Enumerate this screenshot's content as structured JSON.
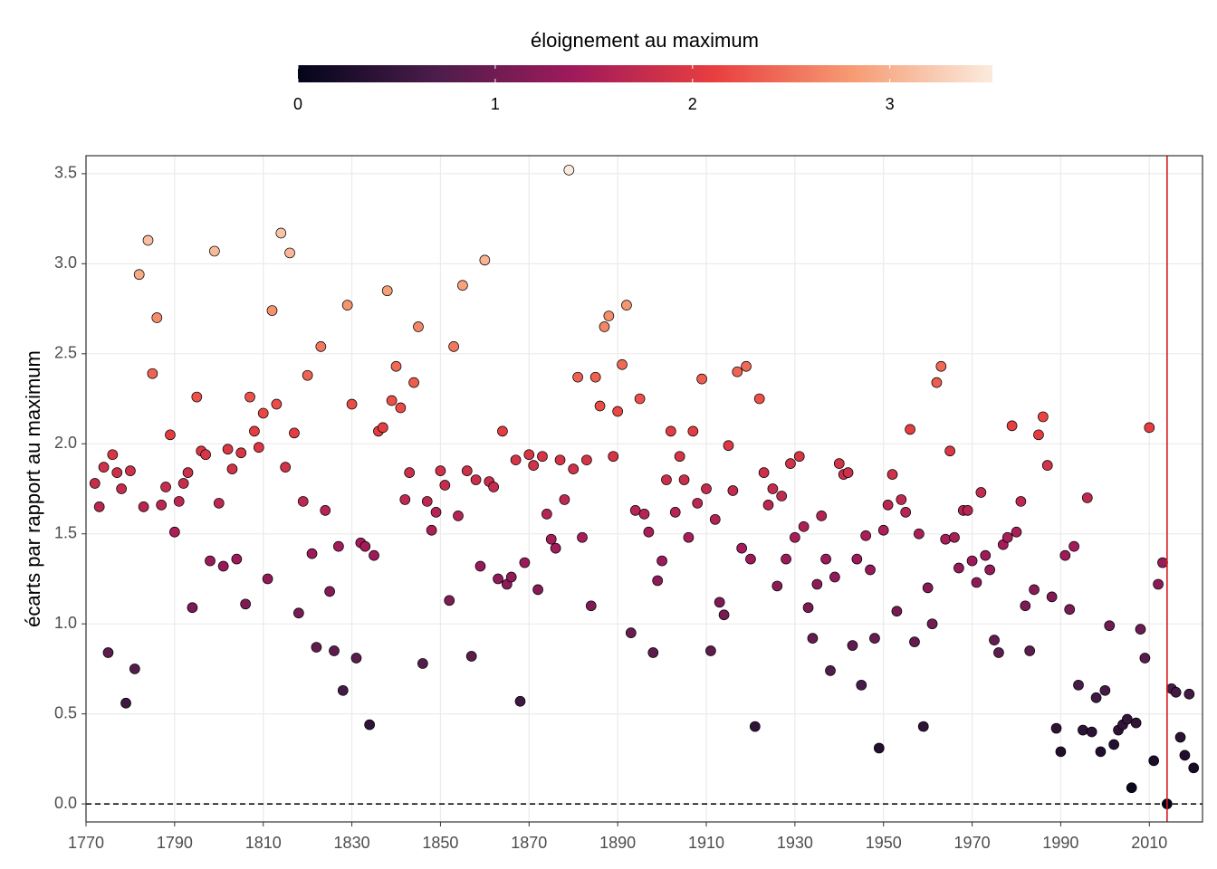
{
  "chart_data": {
    "type": "scatter",
    "ylabel": "écarts par rapport au maximum",
    "xlim": [
      1770,
      2022
    ],
    "ylim": [
      -0.1,
      3.6
    ],
    "xticks": [
      1770,
      1790,
      1810,
      1830,
      1850,
      1870,
      1890,
      1910,
      1930,
      1950,
      1970,
      1990,
      2010
    ],
    "yticks": [
      {
        "value": 0,
        "label": "0.0"
      },
      0.5,
      {
        "value": 1,
        "label": "1.0"
      },
      1.5,
      {
        "value": 2,
        "label": "2.0"
      },
      2.5,
      {
        "value": 3,
        "label": "3.0"
      },
      3.5
    ],
    "grid": true,
    "hline": 0,
    "vline": 2014,
    "vline_color": "#d7191c",
    "colorbar": {
      "title": "éloignement au maximum",
      "lim": [
        0,
        3.52
      ],
      "ticks": [
        0,
        1,
        2,
        3
      ],
      "colors": [
        "#03051a",
        "#4c1d4b",
        "#a11a5b",
        "#e83f3f",
        "#f69c73",
        "#faebdd"
      ]
    },
    "x": [
      1772,
      1773,
      1774,
      1775,
      1776,
      1777,
      1778,
      1779,
      1780,
      1781,
      1782,
      1783,
      1784,
      1785,
      1786,
      1787,
      1788,
      1789,
      1790,
      1791,
      1792,
      1793,
      1794,
      1795,
      1796,
      1797,
      1798,
      1799,
      1800,
      1801,
      1802,
      1803,
      1804,
      1805,
      1806,
      1807,
      1808,
      1809,
      1810,
      1811,
      1812,
      1813,
      1814,
      1815,
      1816,
      1817,
      1818,
      1819,
      1820,
      1821,
      1822,
      1823,
      1824,
      1825,
      1826,
      1827,
      1828,
      1829,
      1830,
      1831,
      1832,
      1833,
      1834,
      1835,
      1836,
      1837,
      1838,
      1839,
      1840,
      1841,
      1842,
      1843,
      1844,
      1845,
      1846,
      1847,
      1848,
      1849,
      1850,
      1851,
      1852,
      1853,
      1854,
      1855,
      1856,
      1857,
      1858,
      1859,
      1860,
      1861,
      1862,
      1863,
      1864,
      1865,
      1866,
      1867,
      1868,
      1869,
      1870,
      1871,
      1872,
      1873,
      1874,
      1875,
      1876,
      1877,
      1878,
      1879,
      1880,
      1881,
      1882,
      1883,
      1884,
      1885,
      1886,
      1887,
      1888,
      1889,
      1890,
      1891,
      1892,
      1893,
      1894,
      1895,
      1896,
      1897,
      1898,
      1899,
      1900,
      1901,
      1902,
      1903,
      1904,
      1905,
      1906,
      1907,
      1908,
      1909,
      1910,
      1911,
      1912,
      1913,
      1914,
      1915,
      1916,
      1917,
      1918,
      1919,
      1920,
      1921,
      1922,
      1923,
      1924,
      1925,
      1926,
      1927,
      1928,
      1929,
      1930,
      1931,
      1932,
      1933,
      1934,
      1935,
      1936,
      1937,
      1938,
      1939,
      1940,
      1941,
      1942,
      1943,
      1944,
      1945,
      1946,
      1947,
      1948,
      1949,
      1950,
      1951,
      1952,
      1953,
      1954,
      1955,
      1956,
      1957,
      1958,
      1959,
      1960,
      1961,
      1962,
      1963,
      1964,
      1965,
      1966,
      1967,
      1968,
      1969,
      1970,
      1971,
      1972,
      1973,
      1974,
      1975,
      1976,
      1977,
      1978,
      1979,
      1980,
      1981,
      1982,
      1983,
      1984,
      1985,
      1986,
      1987,
      1988,
      1989,
      1990,
      1991,
      1992,
      1993,
      1994,
      1995,
      1996,
      1997,
      1998,
      1999,
      2000,
      2001,
      2002,
      2003,
      2004,
      2005,
      2006,
      2007,
      2008,
      2009,
      2010,
      2011,
      2012,
      2013,
      2014,
      2015,
      2016,
      2017,
      2018,
      2019,
      2020
    ],
    "values": [
      1.78,
      1.65,
      1.87,
      0.84,
      1.94,
      1.84,
      1.75,
      0.56,
      1.85,
      0.75,
      2.94,
      1.65,
      3.13,
      2.39,
      2.7,
      1.66,
      1.76,
      2.05,
      1.51,
      1.68,
      1.78,
      1.84,
      1.09,
      2.26,
      1.96,
      1.94,
      1.35,
      3.07,
      1.67,
      1.32,
      1.97,
      1.86,
      1.36,
      1.95,
      1.11,
      2.26,
      2.07,
      1.98,
      2.17,
      1.25,
      2.74,
      2.22,
      3.17,
      1.87,
      3.06,
      2.06,
      1.06,
      1.68,
      2.38,
      1.39,
      0.87,
      2.54,
      1.63,
      1.18,
      0.85,
      1.43,
      0.63,
      2.77,
      2.22,
      0.81,
      1.45,
      1.43,
      0.44,
      1.38,
      2.07,
      2.09,
      2.85,
      2.24,
      2.43,
      2.2,
      1.69,
      1.84,
      2.34,
      2.65,
      0.78,
      1.68,
      1.52,
      1.62,
      1.85,
      1.77,
      1.13,
      2.54,
      1.6,
      2.88,
      1.85,
      0.82,
      1.8,
      1.32,
      3.02,
      1.79,
      1.76,
      1.25,
      2.07,
      1.22,
      1.26,
      1.91,
      0.57,
      1.34,
      1.94,
      1.88,
      1.19,
      1.93,
      1.61,
      1.47,
      1.42,
      1.91,
      1.69,
      3.52,
      1.86,
      2.37,
      1.48,
      1.91,
      1.1,
      2.37,
      2.21,
      2.65,
      2.71,
      1.93,
      2.18,
      2.44,
      2.77,
      0.95,
      1.63,
      2.25,
      1.61,
      1.51,
      0.84,
      1.24,
      1.35,
      1.8,
      2.07,
      1.62,
      1.93,
      1.8,
      1.48,
      2.07,
      1.67,
      2.36,
      1.75,
      0.85,
      1.58,
      1.12,
      1.05,
      1.99,
      1.74,
      2.4,
      1.42,
      2.43,
      1.36,
      0.43,
      2.25,
      1.84,
      1.66,
      1.75,
      1.21,
      1.71,
      1.36,
      1.89,
      1.48,
      1.93,
      1.54,
      1.09,
      0.92,
      1.22,
      1.6,
      1.36,
      0.74,
      1.26,
      1.89,
      1.83,
      1.84,
      0.88,
      1.36,
      0.66,
      1.49,
      1.3,
      0.92,
      0.31,
      1.52,
      1.66,
      1.83,
      1.07,
      1.69,
      1.62,
      2.08,
      0.9,
      1.5,
      0.43,
      1.2,
      1.0,
      2.34,
      2.43,
      1.47,
      1.96,
      1.48,
      1.31,
      1.63,
      1.63,
      1.35,
      1.23,
      1.73,
      1.38,
      1.3,
      0.91,
      0.84,
      1.44,
      1.48,
      2.1,
      1.51,
      1.68,
      1.1,
      0.85,
      1.19,
      2.05,
      2.15,
      1.88,
      1.15,
      0.42,
      0.29,
      1.38,
      1.08,
      1.43,
      0.66,
      0.41,
      1.7,
      0.4,
      0.59,
      0.29,
      0.63,
      0.99,
      0.33,
      0.41,
      0.44,
      0.47,
      0.09,
      0.45,
      0.97,
      0.81,
      2.09,
      0.24,
      1.22,
      1.34,
      0.0,
      0.64,
      0.62,
      0.37,
      0.27,
      0.61,
      0.2
    ]
  }
}
